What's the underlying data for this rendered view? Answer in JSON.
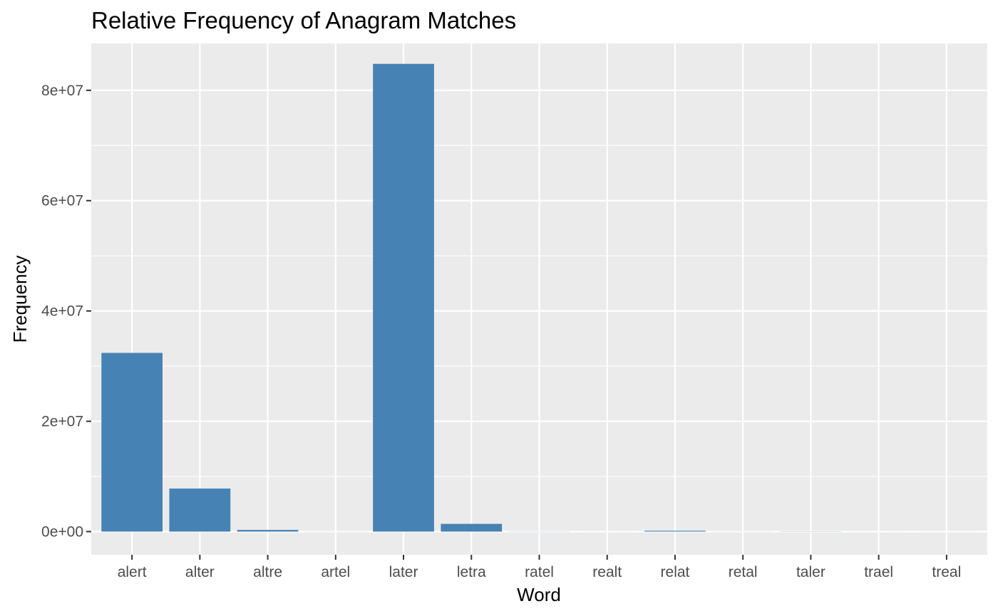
{
  "chart_data": {
    "type": "bar",
    "title": "Relative Frequency of Anagram Matches",
    "xlabel": "Word",
    "ylabel": "Frequency",
    "categories": [
      "alert",
      "alter",
      "altre",
      "artel",
      "later",
      "letra",
      "ratel",
      "realt",
      "relat",
      "retal",
      "taler",
      "trael",
      "treal"
    ],
    "values": [
      32400000,
      7800000,
      300000,
      10000,
      84800000,
      1400000,
      20000,
      5000,
      150000,
      10000,
      30000,
      5000,
      5000
    ],
    "ylim": [
      -4200000,
      88500000
    ],
    "yticks": [
      0,
      20000000,
      40000000,
      60000000,
      80000000
    ],
    "ytick_labels": [
      "0e+00",
      "2e+07",
      "4e+07",
      "6e+07",
      "8e+07"
    ],
    "bar_color": "#4682B4",
    "panel_background": "#EBEBEB",
    "grid": true,
    "legend": "none"
  }
}
